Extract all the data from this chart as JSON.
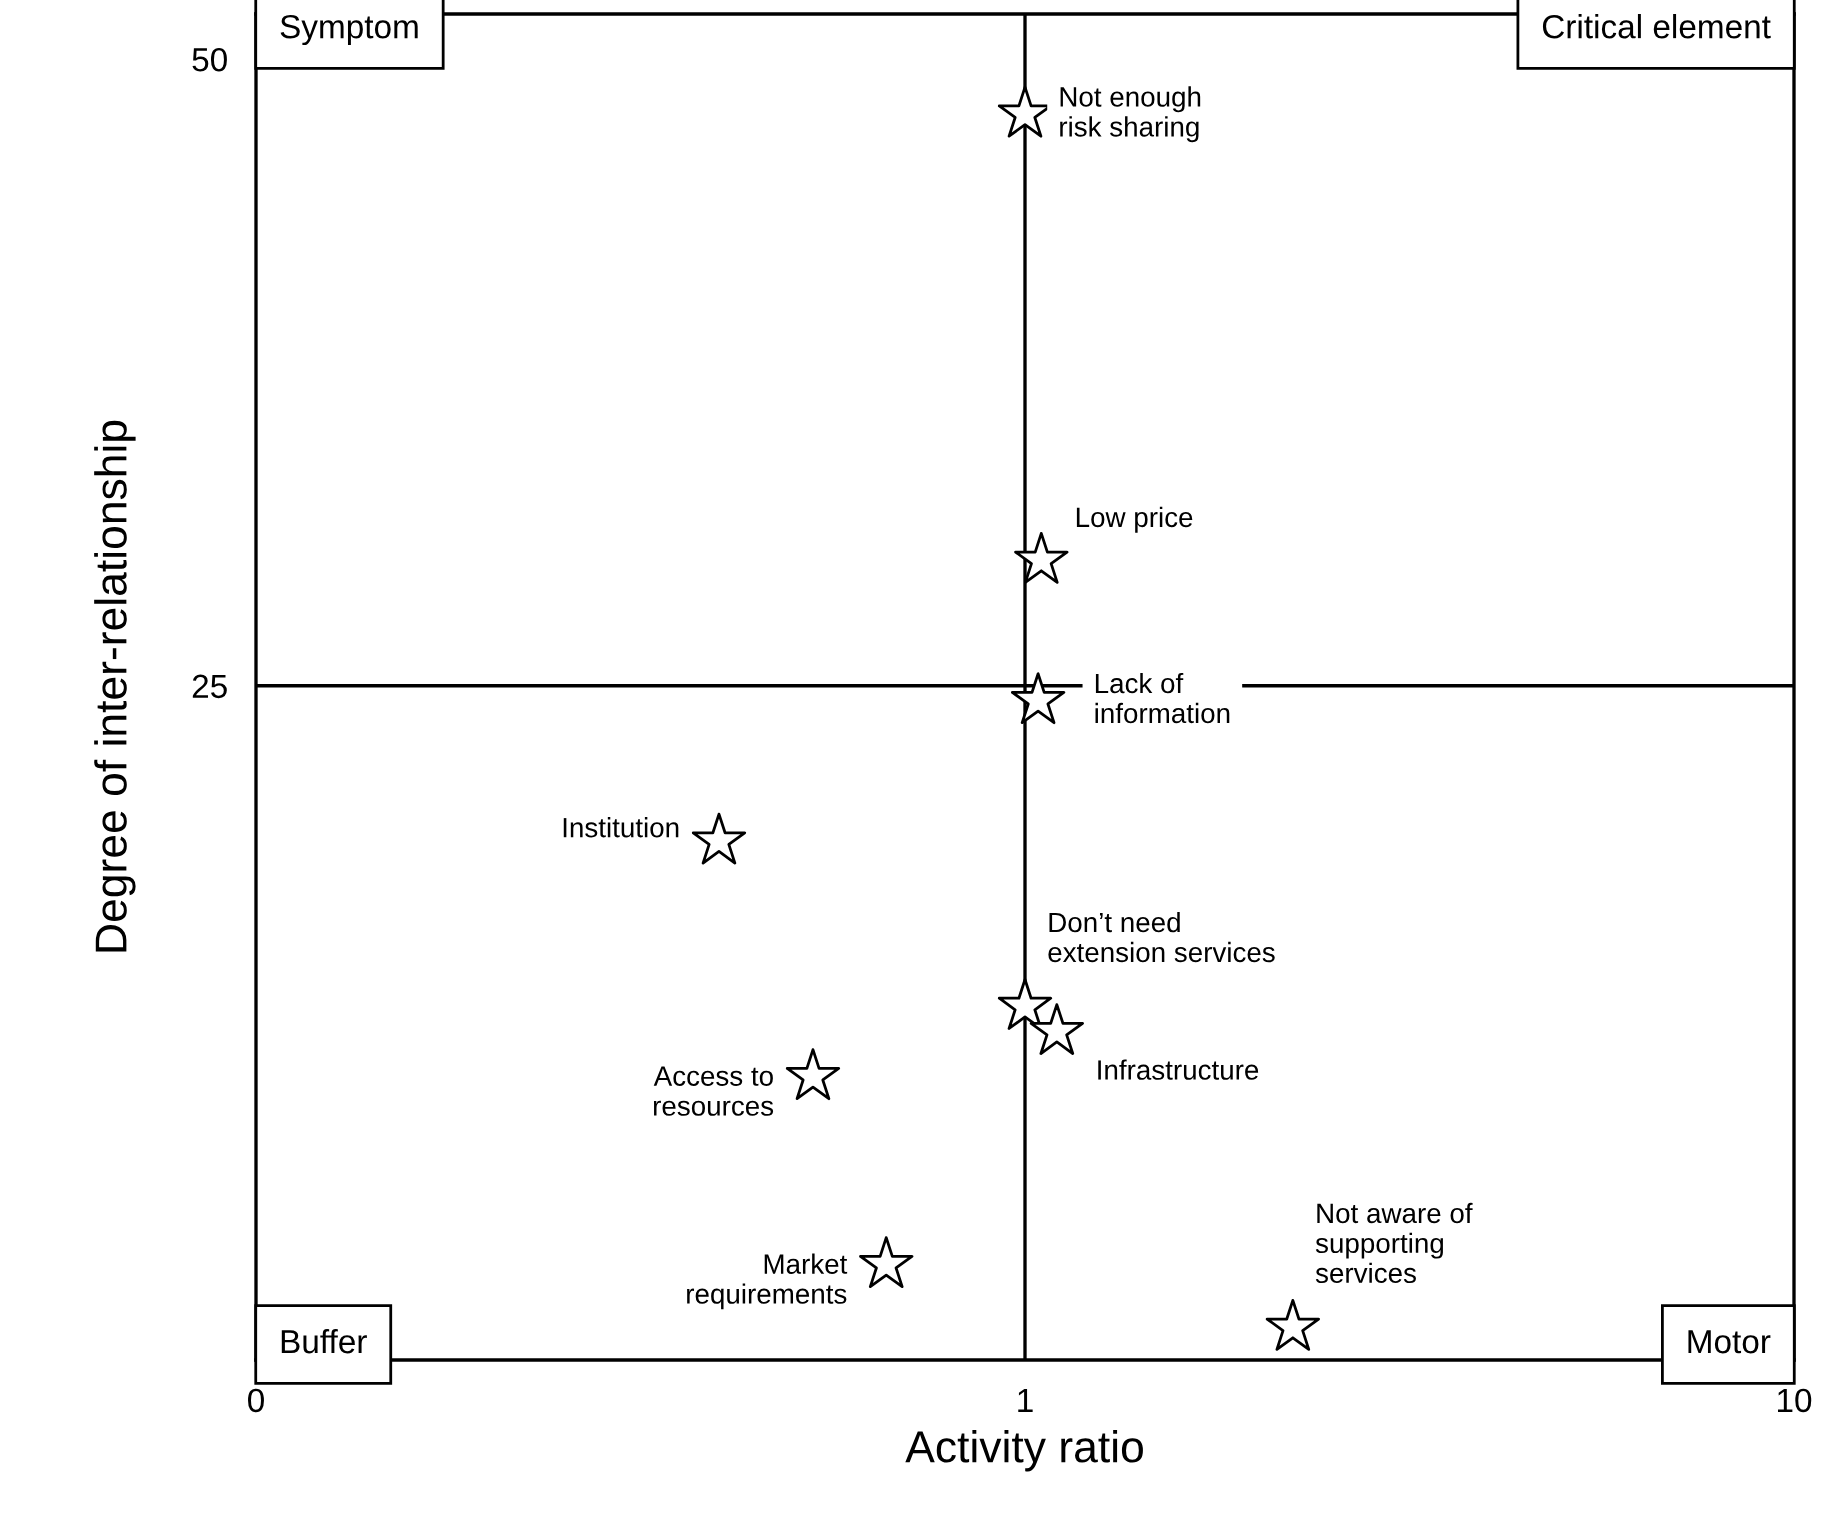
{
  "chart_data": {
    "type": "scatter",
    "xlabel": "Activity ratio",
    "ylabel": "Degree of inter-relationship",
    "log": "x",
    "xlim": [
      0.1,
      10
    ],
    "xticks": [
      {
        "value": 0.1,
        "label": "0"
      },
      1,
      10
    ],
    "ylim": [
      -1.9,
      51.8
    ],
    "yticks": [
      25,
      50
    ],
    "grid": false,
    "marker": "star",
    "series": [
      {
        "color": "#ffffff",
        "x": [
          1.0,
          1.05,
          1.04,
          0.4,
          1.0,
          1.1,
          0.53,
          0.66,
          2.23
        ],
        "values": [
          47.8,
          30,
          24.4,
          18.8,
          12.2,
          11.2,
          9.4,
          1.9,
          -0.6
        ]
      }
    ],
    "ref_lines": [
      {
        "axis": "x",
        "value": 1,
        "color": "#000000"
      },
      {
        "axis": "y",
        "value": 25,
        "color": "#000000"
      }
    ],
    "annotations": [
      {
        "text": "Not enough\nrisk sharing",
        "x": 1.0,
        "y": 47.8
      },
      {
        "text": "Low price",
        "x": 1.05,
        "y": 30
      },
      {
        "text": "Lack of\ninformation",
        "x": 1.04,
        "y": 24.4
      },
      {
        "text": "Institution",
        "x": 0.4,
        "y": 18.8
      },
      {
        "text": "Don’t need\nextension services",
        "x": 1.0,
        "y": 12.2
      },
      {
        "text": "Infrastructure",
        "x": 1.1,
        "y": 11.2
      },
      {
        "text": "Access to\nresources",
        "x": 0.53,
        "y": 9.4
      },
      {
        "text": "Market\nrequirements",
        "x": 0.66,
        "y": 1.9
      },
      {
        "text": "Not aware of\nsupporting\nservices",
        "x": 2.23,
        "y": -0.6
      },
      "Symptom",
      "Critical element",
      "Buffer",
      "Motor"
    ]
  }
}
